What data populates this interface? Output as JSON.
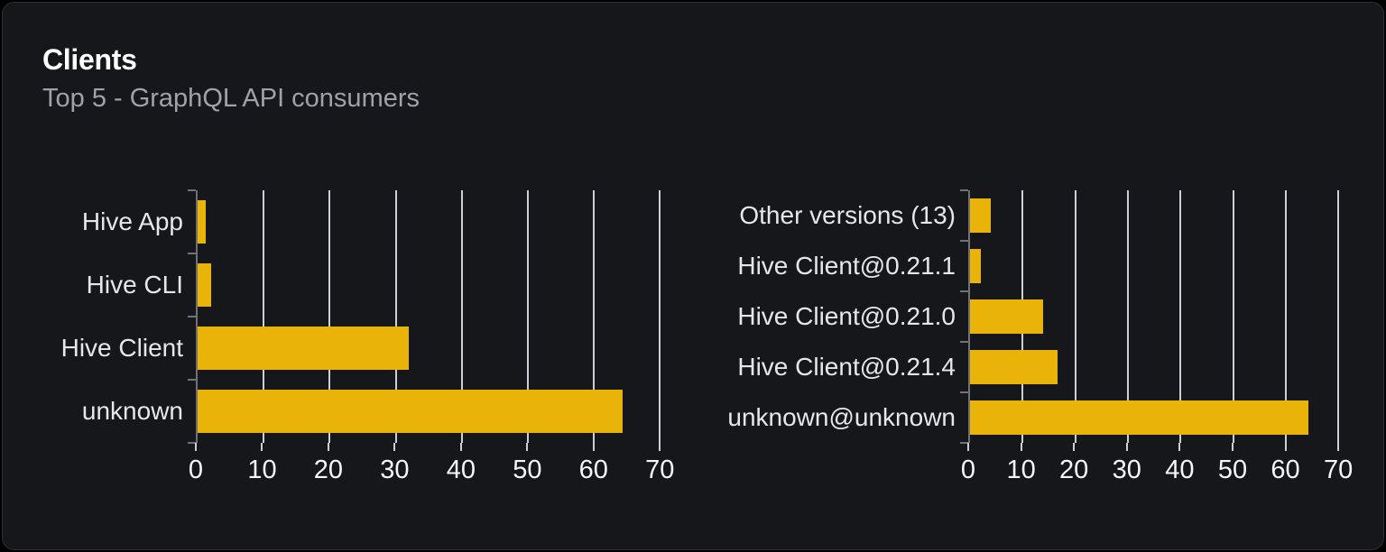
{
  "card": {
    "title": "Clients",
    "subtitle": "Top 5 - GraphQL API consumers"
  },
  "colors": {
    "page_bg": "#000000",
    "card_bg": "#15171b",
    "card_border": "#2e2f36",
    "title": "#ffffff",
    "subtitle": "#a1a1aa",
    "bar": "#eab308",
    "gridline": "#dcdfe5",
    "axis": "#6e7177",
    "category_label": "#e6e7ea",
    "tick_label": "#f5f6f8"
  },
  "chart_data": [
    {
      "type": "bar",
      "orientation": "horizontal",
      "categories": [
        "Hive App",
        "Hive CLI",
        "Hive Client",
        "unknown"
      ],
      "values": [
        1.2,
        2.1,
        32,
        64.3
      ],
      "xticks": [
        0,
        10,
        20,
        30,
        40,
        50,
        60,
        70
      ],
      "xlim": [
        0,
        75
      ],
      "grid": true,
      "legend": false,
      "bar_color": "#eab308"
    },
    {
      "type": "bar",
      "orientation": "horizontal",
      "categories": [
        "Other versions (13)",
        "Hive Client@0.21.1",
        "Hive Client@0.21.0",
        "Hive Client@0.21.4",
        "unknown@unknown"
      ],
      "values": [
        4,
        2,
        13.9,
        16.6,
        64.3
      ],
      "xticks": [
        0,
        10,
        20,
        30,
        40,
        50,
        60,
        70
      ],
      "xlim": [
        0,
        71
      ],
      "grid": true,
      "legend": false,
      "bar_color": "#eab308"
    }
  ]
}
